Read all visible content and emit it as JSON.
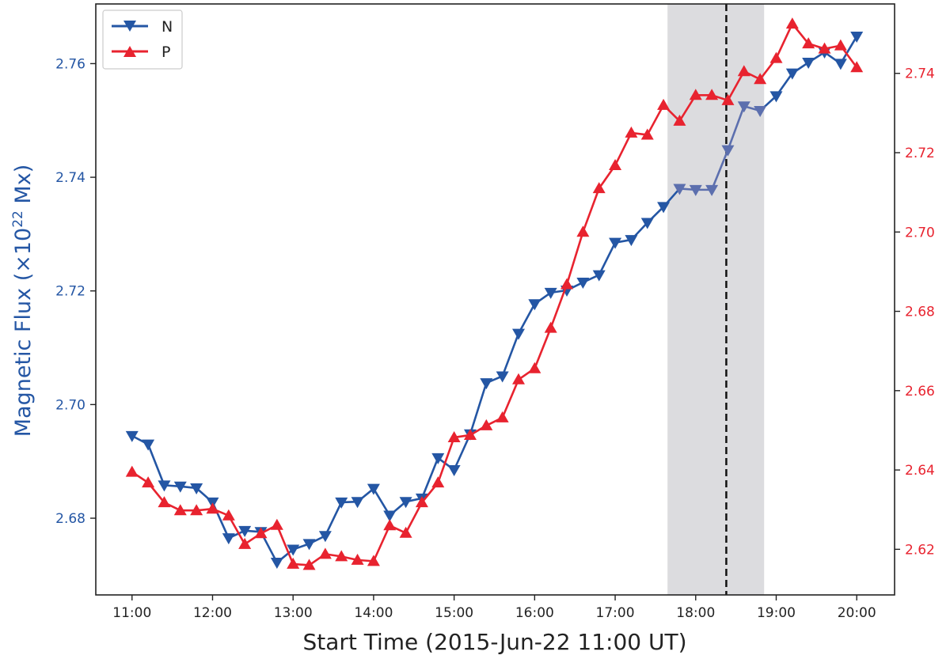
{
  "chart_data": {
    "type": "line",
    "xlabel": "Start Time (2015-Jun-22 11:00 UT)",
    "ylabel_left": "Magnetic Flux (×10",
    "ylabel_left_exp": "22",
    "ylabel_left_unit": " Mx)",
    "x_ticks": [
      "11:00",
      "12:00",
      "13:00",
      "14:00",
      "15:00",
      "16:00",
      "17:00",
      "18:00",
      "19:00",
      "20:00"
    ],
    "x_range_hours": [
      10.55,
      20.47
    ],
    "y_left_ticks": [
      "2.68",
      "2.70",
      "2.72",
      "2.74",
      "2.76"
    ],
    "y_left_range": [
      2.6665,
      2.7705
    ],
    "y_right_ticks": [
      "2.62",
      "2.64",
      "2.66",
      "2.68",
      "2.70",
      "2.72",
      "2.74"
    ],
    "y_right_range": [
      2.6085,
      2.7575
    ],
    "shaded_span_hours": [
      17.65,
      18.85
    ],
    "vline_hour": 18.38,
    "legend_position": "top-left",
    "colors": {
      "N": "#2456a4",
      "P": "#e8232f",
      "N_shaded": "#5c6fae",
      "shade": "#dcdcdf",
      "vline": "#111111"
    },
    "x_hours": [
      11.0,
      11.2,
      11.4,
      11.6,
      11.8,
      12.0,
      12.2,
      12.4,
      12.6,
      12.8,
      13.0,
      13.2,
      13.4,
      13.6,
      13.8,
      14.0,
      14.2,
      14.4,
      14.6,
      14.8,
      15.0,
      15.2,
      15.4,
      15.6,
      15.8,
      16.0,
      16.2,
      16.4,
      16.6,
      16.8,
      17.0,
      17.2,
      17.4,
      17.6,
      17.8,
      18.0,
      18.2,
      18.4,
      18.6,
      18.8,
      19.0,
      19.2,
      19.4,
      19.6,
      19.8,
      20.0
    ],
    "series": [
      {
        "name": "N",
        "axis": "left",
        "marker": "triangle-down",
        "values": [
          2.6945,
          2.693,
          2.6858,
          2.6856,
          2.6853,
          2.6828,
          2.6765,
          2.6778,
          2.6776,
          2.6722,
          2.6745,
          2.6755,
          2.6769,
          2.6828,
          2.6829,
          2.6852,
          2.6805,
          2.6829,
          2.6835,
          2.6906,
          2.6885,
          2.6948,
          2.7038,
          2.705,
          2.7125,
          2.7177,
          2.7197,
          2.7201,
          2.7215,
          2.7228,
          2.7285,
          2.729,
          2.732,
          2.7348,
          2.738,
          2.7378,
          2.7378,
          2.7448,
          2.7525,
          2.7517,
          2.7543,
          2.7583,
          2.7602,
          2.762,
          2.76,
          2.7648
        ]
      },
      {
        "name": "P",
        "axis": "right",
        "marker": "triangle-up",
        "values": [
          2.6395,
          2.6368,
          2.6318,
          2.6298,
          2.6298,
          2.6302,
          2.6285,
          2.6213,
          2.624,
          2.6261,
          2.6163,
          2.616,
          2.6188,
          2.6182,
          2.6173,
          2.617,
          2.626,
          2.6241,
          2.6318,
          2.6368,
          2.6482,
          2.6488,
          2.6512,
          2.6532,
          2.6628,
          2.6656,
          2.6758,
          2.6868,
          2.7,
          2.711,
          2.7168,
          2.725,
          2.7245,
          2.732,
          2.728,
          2.7345,
          2.7345,
          2.7332,
          2.7405,
          2.7385,
          2.7438,
          2.7525,
          2.7475,
          2.7462,
          2.747,
          2.7415
        ]
      }
    ]
  }
}
